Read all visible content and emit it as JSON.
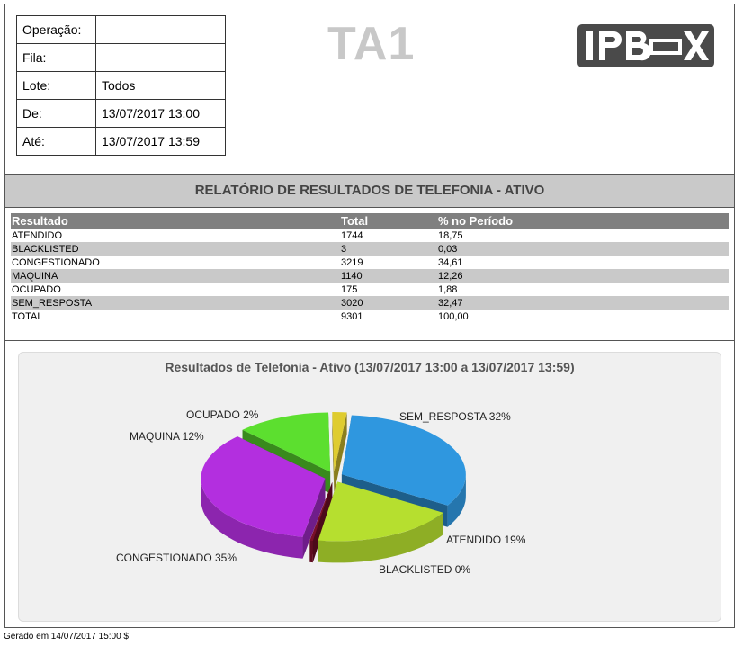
{
  "header": {
    "params": [
      {
        "label": "Operação:",
        "value": ""
      },
      {
        "label": "Fila:",
        "value": ""
      },
      {
        "label": "Lote:",
        "value": "Todos"
      },
      {
        "label": "De:",
        "value": "13/07/2017 13:00"
      },
      {
        "label": "Até:",
        "value": "13/07/2017 13:59"
      }
    ],
    "report_code": "TA1",
    "logo_text": "IPBOX"
  },
  "report_title": "RELATÓRIO DE RESULTADOS DE TELEFONIA - ATIVO",
  "table": {
    "columns": [
      "Resultado",
      "Total",
      "% no Período"
    ],
    "rows": [
      [
        "ATENDIDO",
        "1744",
        "18,75"
      ],
      [
        "BLACKLISTED",
        "3",
        "0,03"
      ],
      [
        "CONGESTIONADO",
        "3219",
        "34,61"
      ],
      [
        "MAQUINA",
        "1140",
        "12,26"
      ],
      [
        "OCUPADO",
        "175",
        "1,88"
      ],
      [
        "SEM_RESPOSTA",
        "3020",
        "32,47"
      ],
      [
        "TOTAL",
        "9301",
        "100,00"
      ]
    ]
  },
  "chart_data": {
    "type": "pie",
    "title": "Resultados de Telefonia - Ativo (13/07/2017 13:00 a  13/07/2017 13:59)",
    "slices": [
      {
        "name": "SEM_RESPOSTA",
        "value": 3020,
        "label": "SEM_RESPOSTA 32%",
        "color": "#2f97df"
      },
      {
        "name": "ATENDIDO",
        "value": 1744,
        "label": "ATENDIDO 19%",
        "color": "#b6df2f"
      },
      {
        "name": "BLACKLISTED",
        "value": 3,
        "label": "BLACKLISTED 0%",
        "color": "#7a0f2a"
      },
      {
        "name": "CONGESTIONADO",
        "value": 3219,
        "label": "CONGESTIONADO 35%",
        "color": "#b32fdf"
      },
      {
        "name": "MAQUINA",
        "value": 1140,
        "label": "MAQUINA 12%",
        "color": "#5cdf2f"
      },
      {
        "name": "OCUPADO",
        "value": 175,
        "label": "OCUPADO 2%",
        "color": "#dfcc2f"
      }
    ],
    "style": "3d-exploded",
    "legend": "none"
  },
  "footer": "Gerado em 14/07/2017 15:00 $"
}
